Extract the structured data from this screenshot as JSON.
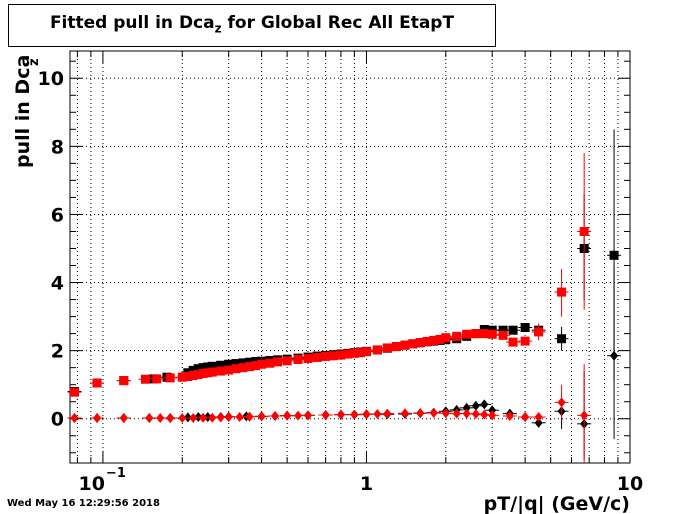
{
  "title": {
    "main": "Fitted pull in Dca",
    "sub": "z",
    "rest": " for Global Rec All EtapT"
  },
  "timestamp": "Wed May 16 12:29:56 2018",
  "chart_data": {
    "type": "scatter",
    "xlabel": "pT/|q| (GeV/c)",
    "ylabel": "pull in Dca",
    "ylabel_sub": "z",
    "xscale": "log",
    "xlim": [
      0.075,
      10.0
    ],
    "ylim": [
      -1.3,
      10.8
    ],
    "x_ticks": [
      {
        "v": 0.1,
        "base": "10",
        "exp": "−1"
      },
      {
        "v": 1,
        "base": "1",
        "exp": ""
      },
      {
        "v": 10,
        "base": "10",
        "exp": ""
      }
    ],
    "y_ticks": [
      0,
      2,
      4,
      6,
      8,
      10
    ],
    "grid": true,
    "colors": {
      "black": "#000000",
      "red": "#ff0000"
    },
    "series": [
      {
        "marker": "square",
        "color": "#000000",
        "points": [
          [
            0.078,
            0.8
          ],
          [
            0.095,
            1.05
          ],
          [
            0.12,
            1.12
          ],
          [
            0.155,
            1.17
          ],
          [
            0.175,
            1.22
          ],
          [
            0.21,
            1.35
          ],
          [
            0.22,
            1.42
          ],
          [
            0.23,
            1.47
          ],
          [
            0.24,
            1.5
          ],
          [
            0.25,
            1.52
          ],
          [
            0.26,
            1.54
          ],
          [
            0.28,
            1.57
          ],
          [
            0.3,
            1.6
          ],
          [
            0.32,
            1.62
          ],
          [
            0.34,
            1.64
          ],
          [
            0.36,
            1.66
          ],
          [
            0.38,
            1.68
          ],
          [
            0.4,
            1.69
          ],
          [
            0.43,
            1.71
          ],
          [
            0.46,
            1.73
          ],
          [
            0.5,
            1.75
          ],
          [
            0.55,
            1.78
          ],
          [
            0.6,
            1.81
          ],
          [
            0.65,
            1.84
          ],
          [
            0.7,
            1.86
          ],
          [
            0.75,
            1.88
          ],
          [
            0.8,
            1.9
          ],
          [
            0.85,
            1.92
          ],
          [
            0.9,
            1.94
          ],
          [
            0.95,
            1.96
          ],
          [
            1.0,
            1.98
          ],
          [
            1.1,
            2.02
          ],
          [
            1.2,
            2.07
          ],
          [
            1.3,
            2.12
          ],
          [
            1.4,
            2.16
          ],
          [
            1.5,
            2.2
          ],
          [
            1.6,
            2.23
          ],
          [
            1.7,
            2.26
          ],
          [
            1.8,
            2.28
          ],
          [
            1.9,
            2.3
          ],
          [
            2.0,
            2.32
          ],
          [
            2.2,
            2.35
          ],
          [
            2.4,
            2.42
          ],
          [
            2.6,
            2.5
          ],
          [
            2.8,
            2.62
          ],
          [
            3.0,
            2.6
          ],
          [
            3.3,
            2.6
          ],
          [
            3.6,
            2.6
          ],
          [
            4.0,
            2.68
          ],
          [
            4.5,
            2.6
          ],
          [
            5.5,
            2.35
          ],
          [
            6.7,
            5.0
          ],
          [
            8.7,
            4.8
          ]
        ],
        "errors": [
          {
            "x": 5.5,
            "lo": 2.0,
            "hi": 2.7
          },
          {
            "x": 6.7,
            "lo": 3.5,
            "hi": 6.6
          },
          {
            "x": 8.7,
            "lo": 1.1,
            "hi": 8.5
          }
        ]
      },
      {
        "marker": "square",
        "color": "#ff0000",
        "points": [
          [
            0.078,
            0.78
          ],
          [
            0.095,
            1.05
          ],
          [
            0.12,
            1.12
          ],
          [
            0.145,
            1.16
          ],
          [
            0.16,
            1.17
          ],
          [
            0.18,
            1.2
          ],
          [
            0.2,
            1.22
          ],
          [
            0.21,
            1.24
          ],
          [
            0.22,
            1.27
          ],
          [
            0.23,
            1.3
          ],
          [
            0.24,
            1.33
          ],
          [
            0.25,
            1.35
          ],
          [
            0.26,
            1.37
          ],
          [
            0.28,
            1.4
          ],
          [
            0.3,
            1.43
          ],
          [
            0.32,
            1.47
          ],
          [
            0.34,
            1.5
          ],
          [
            0.36,
            1.53
          ],
          [
            0.38,
            1.56
          ],
          [
            0.4,
            1.6
          ],
          [
            0.43,
            1.63
          ],
          [
            0.46,
            1.67
          ],
          [
            0.5,
            1.7
          ],
          [
            0.55,
            1.74
          ],
          [
            0.6,
            1.77
          ],
          [
            0.65,
            1.8
          ],
          [
            0.7,
            1.83
          ],
          [
            0.75,
            1.85
          ],
          [
            0.8,
            1.87
          ],
          [
            0.85,
            1.9
          ],
          [
            0.9,
            1.92
          ],
          [
            0.95,
            1.94
          ],
          [
            1.0,
            1.97
          ],
          [
            1.1,
            2.02
          ],
          [
            1.2,
            2.08
          ],
          [
            1.3,
            2.12
          ],
          [
            1.4,
            2.16
          ],
          [
            1.5,
            2.2
          ],
          [
            1.6,
            2.24
          ],
          [
            1.7,
            2.27
          ],
          [
            1.8,
            2.3
          ],
          [
            1.9,
            2.33
          ],
          [
            2.0,
            2.38
          ],
          [
            2.2,
            2.42
          ],
          [
            2.4,
            2.48
          ],
          [
            2.6,
            2.5
          ],
          [
            2.8,
            2.5
          ],
          [
            3.0,
            2.48
          ],
          [
            3.3,
            2.45
          ],
          [
            3.6,
            2.25
          ],
          [
            4.0,
            2.28
          ],
          [
            4.5,
            2.55
          ],
          [
            5.5,
            3.72
          ],
          [
            6.7,
            5.5
          ]
        ],
        "errors": [
          {
            "x": 4.5,
            "lo": 2.3,
            "hi": 2.8
          },
          {
            "x": 5.5,
            "lo": 3.0,
            "hi": 4.4
          },
          {
            "x": 6.7,
            "lo": 3.2,
            "hi": 7.8
          }
        ]
      },
      {
        "marker": "diamond",
        "color": "#000000",
        "points": [
          [
            0.078,
            0.02
          ],
          [
            0.095,
            0.02
          ],
          [
            0.12,
            0.02
          ],
          [
            0.15,
            0.02
          ],
          [
            0.18,
            0.02
          ],
          [
            0.21,
            0.04
          ],
          [
            0.23,
            0.05
          ],
          [
            0.25,
            0.05
          ],
          [
            0.28,
            0.05
          ],
          [
            0.3,
            0.06
          ],
          [
            0.35,
            0.07
          ],
          [
            0.4,
            0.07
          ],
          [
            0.45,
            0.08
          ],
          [
            0.5,
            0.09
          ],
          [
            0.6,
            0.1
          ],
          [
            0.7,
            0.11
          ],
          [
            0.8,
            0.12
          ],
          [
            0.9,
            0.12
          ],
          [
            1.0,
            0.13
          ],
          [
            1.2,
            0.13
          ],
          [
            1.4,
            0.14
          ],
          [
            1.6,
            0.16
          ],
          [
            1.8,
            0.18
          ],
          [
            2.0,
            0.22
          ],
          [
            2.2,
            0.26
          ],
          [
            2.4,
            0.32
          ],
          [
            2.6,
            0.38
          ],
          [
            2.8,
            0.42
          ],
          [
            3.0,
            0.25
          ],
          [
            3.5,
            0.15
          ],
          [
            4.0,
            0.05
          ],
          [
            4.5,
            -0.12
          ],
          [
            5.5,
            0.22
          ],
          [
            6.7,
            -0.15
          ],
          [
            8.7,
            1.85
          ]
        ],
        "errors": [
          {
            "x": 5.5,
            "lo": -0.3,
            "hi": 0.6
          },
          {
            "x": 6.7,
            "lo": -1.2,
            "hi": 1.4
          },
          {
            "x": 8.7,
            "lo": -0.6,
            "hi": 4.5
          }
        ]
      },
      {
        "marker": "diamond",
        "color": "#ff0000",
        "points": [
          [
            0.078,
            0.02
          ],
          [
            0.095,
            0.02
          ],
          [
            0.12,
            0.02
          ],
          [
            0.15,
            0.02
          ],
          [
            0.165,
            0.02
          ],
          [
            0.18,
            0.02
          ],
          [
            0.2,
            0.02
          ],
          [
            0.22,
            0.02
          ],
          [
            0.24,
            0.03
          ],
          [
            0.26,
            0.03
          ],
          [
            0.28,
            0.04
          ],
          [
            0.3,
            0.05
          ],
          [
            0.33,
            0.05
          ],
          [
            0.36,
            0.06
          ],
          [
            0.4,
            0.07
          ],
          [
            0.45,
            0.08
          ],
          [
            0.5,
            0.09
          ],
          [
            0.55,
            0.09
          ],
          [
            0.6,
            0.1
          ],
          [
            0.7,
            0.11
          ],
          [
            0.8,
            0.12
          ],
          [
            0.9,
            0.12
          ],
          [
            1.0,
            0.13
          ],
          [
            1.1,
            0.14
          ],
          [
            1.2,
            0.15
          ],
          [
            1.4,
            0.16
          ],
          [
            1.6,
            0.17
          ],
          [
            1.8,
            0.17
          ],
          [
            2.0,
            0.16
          ],
          [
            2.2,
            0.15
          ],
          [
            2.4,
            0.15
          ],
          [
            2.6,
            0.14
          ],
          [
            2.8,
            0.12
          ],
          [
            3.0,
            0.1
          ],
          [
            3.5,
            0.08
          ],
          [
            4.0,
            0.05
          ],
          [
            4.5,
            0.05
          ],
          [
            5.5,
            0.48
          ],
          [
            6.7,
            0.1
          ]
        ],
        "errors": [
          {
            "x": 5.5,
            "lo": 0.0,
            "hi": 1.0
          },
          {
            "x": 6.7,
            "lo": -1.3,
            "hi": 1.6
          }
        ]
      }
    ]
  }
}
